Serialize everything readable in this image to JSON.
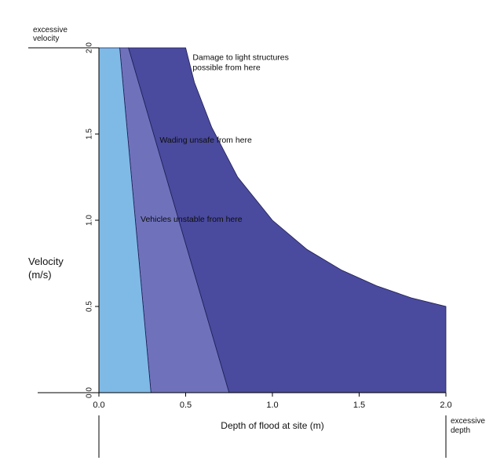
{
  "chart_data": {
    "type": "area",
    "title": "",
    "xlabel": "Depth of flood at site (m)",
    "ylabel": [
      "Velocity",
      "(m/s)"
    ],
    "xlim": [
      0,
      2
    ],
    "ylim": [
      0,
      2
    ],
    "x_ticks": [
      {
        "value": 0,
        "label": "0.0"
      },
      {
        "value": 0.5,
        "label": "0.5"
      },
      {
        "value": 1,
        "label": "1.0"
      },
      {
        "value": 1.5,
        "label": "1.5"
      },
      {
        "value": 2,
        "label": "2.0"
      }
    ],
    "y_ticks": [
      {
        "value": 0,
        "label": "0.0"
      },
      {
        "value": 0.5,
        "label": "0.5"
      },
      {
        "value": 1,
        "label": "1.0"
      },
      {
        "value": 1.5,
        "label": "1.5"
      },
      {
        "value": 2,
        "label": "2.0"
      }
    ],
    "top_left_note": [
      "excessive",
      "velocity"
    ],
    "bottom_right_note": [
      "excessive",
      "depth"
    ],
    "regions": [
      {
        "id": "damage-light-structures",
        "label": "",
        "color": "#4a4a9e",
        "boundary": [
          [
            0.17,
            2.0
          ],
          [
            0.5,
            2.0
          ],
          [
            0.55,
            1.8
          ],
          [
            0.65,
            1.54
          ],
          [
            0.8,
            1.25
          ],
          [
            1.0,
            1.0
          ],
          [
            1.2,
            0.83
          ],
          [
            1.4,
            0.71
          ],
          [
            1.6,
            0.62
          ],
          [
            1.8,
            0.55
          ],
          [
            2.0,
            0.5
          ],
          [
            2.0,
            0.0
          ],
          [
            0.75,
            0.0
          ]
        ]
      },
      {
        "id": "wading-unsafe",
        "label": "",
        "color": "#6f72bb",
        "boundary": [
          [
            0.12,
            2.0
          ],
          [
            0.17,
            2.0
          ],
          [
            0.75,
            0.0
          ],
          [
            0.3,
            0.0
          ]
        ]
      },
      {
        "id": "vehicles-unstable",
        "label": "",
        "color": "#7fbae6",
        "boundary": [
          [
            0.0,
            2.0
          ],
          [
            0.12,
            2.0
          ],
          [
            0.3,
            0.0
          ],
          [
            0.0,
            0.0
          ]
        ]
      }
    ],
    "annotations": [
      {
        "id": "damage",
        "lines": [
          "Damage to light structures",
          "possible from here"
        ],
        "x": 0.54,
        "y": 1.93
      },
      {
        "id": "wading",
        "lines": [
          "Wading unsafe from here"
        ],
        "x": 0.35,
        "y": 1.45
      },
      {
        "id": "vehicles",
        "lines": [
          "Vehicles  unstable from here"
        ],
        "x": 0.24,
        "y": 0.99
      }
    ],
    "grid": false,
    "legend": "none"
  }
}
